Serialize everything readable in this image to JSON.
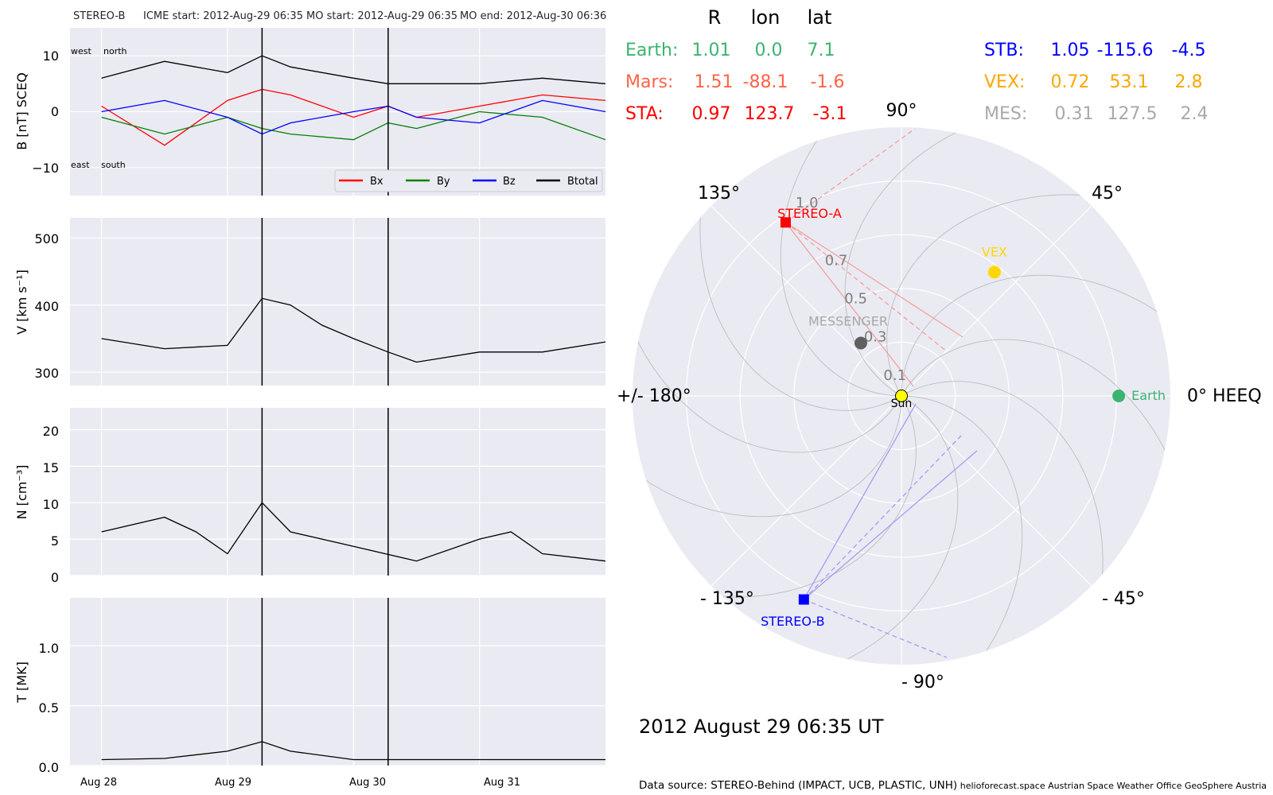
{
  "header": {
    "spacecraft": "STEREO-B",
    "icme_start": "ICME start: 2012-Aug-29 06:35",
    "mo_start": "MO start: 2012-Aug-29 06:35",
    "mo_end": "MO end: 2012-Aug-30 06:36"
  },
  "chart_data": [
    {
      "id": "b-panel",
      "type": "line",
      "ylabel": "B [nT] SCEQ",
      "ylim": [
        -15,
        15
      ],
      "yticks": [
        "10",
        "0",
        "−10"
      ],
      "annotations": {
        "west": "west",
        "north": "north",
        "east": "east",
        "south": "south"
      },
      "x": [
        "Aug 28 00:00",
        "Aug 28 12:00",
        "Aug 29 00:00",
        "Aug 29 06:35",
        "Aug 29 12:00",
        "Aug 30 00:00",
        "Aug 30 06:36",
        "Aug 30 12:00",
        "Aug 31 00:00",
        "Aug 31 12:00",
        "Sep 1 00:00"
      ],
      "series": [
        {
          "name": "Bx",
          "color": "#ff0000",
          "values": [
            1,
            -6,
            2,
            4,
            3,
            -1,
            1,
            -1,
            1,
            3,
            2
          ]
        },
        {
          "name": "By",
          "color": "#008000",
          "values": [
            -1,
            -4,
            -1,
            -3,
            -4,
            -5,
            -2,
            -3,
            0,
            -1,
            -5
          ]
        },
        {
          "name": "Bz",
          "color": "#0000ff",
          "values": [
            0,
            2,
            -1,
            -4,
            -2,
            0,
            1,
            -1,
            -2,
            2,
            0
          ]
        },
        {
          "name": "Btotal",
          "color": "#000000",
          "values": [
            6,
            9,
            7,
            10,
            8,
            6,
            5,
            5,
            5,
            6,
            5
          ]
        }
      ],
      "legend": [
        "Bx",
        "By",
        "Bz",
        "Btotal"
      ],
      "legend_position": "lower-right"
    },
    {
      "id": "v-panel",
      "type": "line",
      "ylabel": "V [km s⁻¹]",
      "ylim": [
        280,
        530
      ],
      "yticks": [
        "500",
        "400",
        "300"
      ],
      "x": [
        "Aug 28 00:00",
        "Aug 28 12:00",
        "Aug 29 00:00",
        "Aug 29 06:35",
        "Aug 29 12:00",
        "Aug 29 18:00",
        "Aug 30 00:00",
        "Aug 30 06:36",
        "Aug 30 12:00",
        "Aug 31 00:00",
        "Aug 31 12:00",
        "Sep 1 00:00"
      ],
      "values": [
        350,
        335,
        340,
        410,
        400,
        370,
        350,
        330,
        315,
        330,
        330,
        345
      ]
    },
    {
      "id": "n-panel",
      "type": "line",
      "ylabel": "N [cm⁻³]",
      "ylim": [
        0,
        23
      ],
      "yticks": [
        "20",
        "15",
        "10",
        "5",
        "0"
      ],
      "x": [
        "Aug 28 00:00",
        "Aug 28 12:00",
        "Aug 28 18:00",
        "Aug 29 00:00",
        "Aug 29 06:35",
        "Aug 29 12:00",
        "Aug 30 00:00",
        "Aug 30 12:00",
        "Aug 31 00:00",
        "Aug 31 06:00",
        "Aug 31 12:00",
        "Sep 1 00:00"
      ],
      "values": [
        6,
        8,
        6,
        3,
        10,
        6,
        4,
        2,
        5,
        6,
        3,
        2
      ]
    },
    {
      "id": "t-panel",
      "type": "line",
      "ylabel": "T [MK]",
      "ylim": [
        0,
        1.4
      ],
      "yticks": [
        "1.0",
        "0.5",
        "0.0"
      ],
      "xticks": [
        "Aug 28",
        "Aug 29",
        "Aug 30",
        "Aug 31"
      ],
      "x": [
        "Aug 28 00:00",
        "Aug 28 12:00",
        "Aug 29 00:00",
        "Aug 29 06:35",
        "Aug 29 12:00",
        "Aug 30 00:00",
        "Aug 31 00:00",
        "Sep 1 00:00"
      ],
      "values": [
        0.05,
        0.06,
        0.12,
        0.2,
        0.12,
        0.05,
        0.05,
        0.05
      ]
    },
    {
      "id": "polar-plot",
      "type": "scatter",
      "angle_labels": {
        "a0": "0° HEEQ",
        "a45": "45°",
        "a90": "90°",
        "a135": "135°",
        "a180": "+/- 180°",
        "am135": "- 135°",
        "am90": "- 90°",
        "am45": "- 45°"
      },
      "radial_labels": [
        "0.1",
        "0.3",
        "0.5",
        "0.7",
        "1.0"
      ],
      "bodies": [
        {
          "name": "Sun",
          "r": 0.0,
          "lon": 0.0,
          "color": "#ffff00"
        },
        {
          "name": "Earth",
          "r": 1.01,
          "lon": 0.0,
          "color": "#3cb371"
        },
        {
          "name": "VEX",
          "r": 0.72,
          "lon": 53.1,
          "color": "#ffd700"
        },
        {
          "name": "MESSENGER",
          "r": 0.31,
          "lon": 127.5,
          "color": "#606060"
        },
        {
          "name": "STEREO-A",
          "r": 0.97,
          "lon": 123.7,
          "color": "#ff0000"
        },
        {
          "name": "STEREO-B",
          "r": 1.05,
          "lon": -115.6,
          "color": "#0000ff"
        }
      ]
    }
  ],
  "position_table": {
    "headers": [
      "R",
      "lon",
      "lat"
    ],
    "rows_left": [
      {
        "name": "Earth:",
        "r": "1.01",
        "lon": "0.0",
        "lat": "7.1",
        "color": "#3cb371"
      },
      {
        "name": "Mars:",
        "r": "1.51",
        "lon": "-88.1",
        "lat": "-1.6",
        "color": "#ff6347"
      },
      {
        "name": "STA:",
        "r": "0.97",
        "lon": "123.7",
        "lat": "-3.1",
        "color": "#ff0000"
      }
    ],
    "rows_right": [
      {
        "name": "STB:",
        "r": "1.05",
        "lon": "-115.6",
        "lat": "-4.5",
        "color": "#0000ff"
      },
      {
        "name": "VEX:",
        "r": "0.72",
        "lon": "53.1",
        "lat": "2.8",
        "color": "#ffa500"
      },
      {
        "name": "MES:",
        "r": "0.31",
        "lon": "127.5",
        "lat": "2.4",
        "color": "#a9a9a9"
      }
    ]
  },
  "date_label": "2012 August 29  06:35 UT",
  "footer": {
    "source": "Data source: STEREO-Behind (IMPACT, UCB, PLASTIC, UNH)",
    "credits": "helioforecast.space   Austrian Space Weather Office   GeoSphere Austria"
  }
}
